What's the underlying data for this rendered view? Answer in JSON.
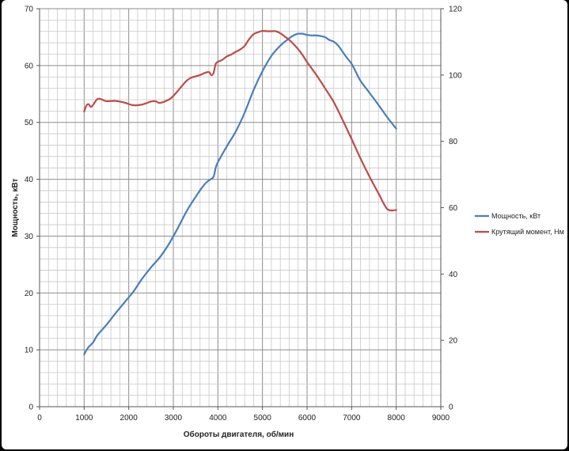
{
  "chart_data": {
    "type": "line",
    "title": "",
    "xlabel": "Обороты двигателя, об/мин",
    "ylabel": "Мощность, кВт",
    "y2label": "",
    "xlim": [
      0,
      9000
    ],
    "ylim": [
      0,
      70
    ],
    "y2lim": [
      0,
      120
    ],
    "xticks": [
      0,
      1000,
      2000,
      3000,
      4000,
      5000,
      6000,
      7000,
      8000,
      9000
    ],
    "yticks": [
      0,
      10,
      20,
      30,
      40,
      50,
      60,
      70
    ],
    "y2ticks": [
      0,
      20,
      40,
      60,
      80,
      100,
      120
    ],
    "grid": true,
    "legend_position": "right",
    "series": [
      {
        "name": "Мощность, кВт",
        "axis": "left",
        "color": "#4a7ebb",
        "x": [
          1000,
          1050,
          1100,
          1200,
          1300,
          1500,
          1700,
          1900,
          2100,
          2300,
          2500,
          2700,
          2900,
          3100,
          3300,
          3500,
          3700,
          3800,
          3900,
          3950,
          4000,
          4200,
          4400,
          4600,
          4800,
          5000,
          5200,
          5400,
          5600,
          5700,
          5800,
          5850,
          5900,
          6000,
          6100,
          6200,
          6300,
          6400,
          6500,
          6600,
          6700,
          6800,
          6900,
          7000,
          7100,
          7200,
          7400,
          7600,
          7800,
          8000
        ],
        "y": [
          9.2,
          9.9,
          10.5,
          11.3,
          12.6,
          14.4,
          16.4,
          18.3,
          20.2,
          22.5,
          24.5,
          26.3,
          28.6,
          31.4,
          34.4,
          36.9,
          39.1,
          39.8,
          40.4,
          42.0,
          43.0,
          45.8,
          48.4,
          51.7,
          55.7,
          59.0,
          61.7,
          63.5,
          64.8,
          65.3,
          65.6,
          65.6,
          65.6,
          65.4,
          65.3,
          65.3,
          65.2,
          65.0,
          64.5,
          64.2,
          63.5,
          62.4,
          61.3,
          60.3,
          58.8,
          57.3,
          55.2,
          53.1,
          50.9,
          48.9
        ]
      },
      {
        "name": "Крутящий момент, Нм",
        "axis": "right",
        "color": "#be4b48",
        "x": [
          1000,
          1050,
          1100,
          1150,
          1200,
          1300,
          1400,
          1500,
          1700,
          1900,
          2100,
          2300,
          2500,
          2600,
          2700,
          2900,
          3000,
          3100,
          3200,
          3300,
          3400,
          3500,
          3600,
          3700,
          3800,
          3850,
          3900,
          3950,
          4000,
          4100,
          4200,
          4300,
          4400,
          4500,
          4600,
          4700,
          4800,
          4900,
          5000,
          5100,
          5200,
          5300,
          5400,
          5500,
          5600,
          5700,
          5800,
          5900,
          6000,
          6200,
          6400,
          6600,
          6800,
          7000,
          7200,
          7400,
          7600,
          7800,
          8000
        ],
        "y": [
          89.0,
          90.8,
          91.2,
          90.4,
          91.0,
          92.8,
          92.6,
          92.1,
          92.2,
          91.7,
          90.9,
          91.1,
          92.0,
          92.1,
          91.6,
          92.6,
          93.7,
          95.2,
          96.8,
          98.3,
          99.2,
          99.6,
          100.0,
          100.6,
          100.9,
          100.0,
          100.5,
          103.3,
          104.0,
          104.6,
          105.6,
          106.2,
          107.0,
          107.7,
          108.8,
          110.8,
          112.3,
          112.9,
          113.3,
          113.2,
          113.2,
          113.2,
          112.6,
          111.6,
          110.6,
          109.3,
          107.8,
          106.0,
          103.9,
          100.2,
          96.1,
          91.8,
          86.4,
          80.7,
          74.8,
          69.4,
          64.4,
          59.6,
          59.3
        ]
      }
    ]
  }
}
